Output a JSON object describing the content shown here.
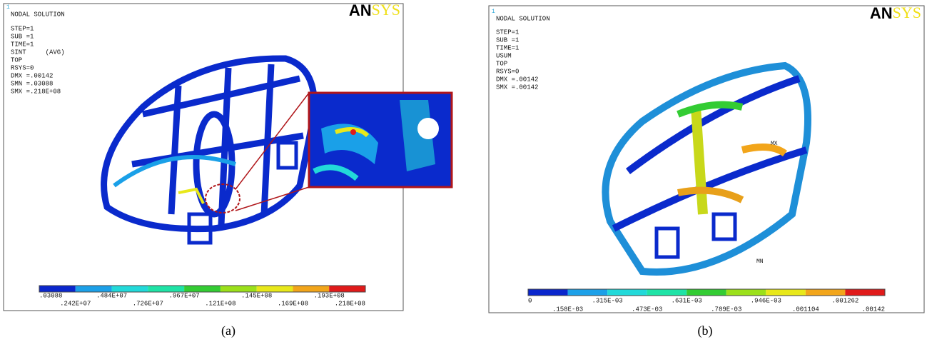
{
  "panels": [
    {
      "marker": "1",
      "logo": {
        "bold": "AN",
        "light": "SYS"
      },
      "header": [
        "NODAL SOLUTION",
        "STEP=1",
        "SUB =1",
        "TIME=1",
        "SINT     (AVG)",
        "TOP",
        "RSYS=0",
        "DMX =.00142",
        "SMN =.03088",
        "SMX =.218E+08"
      ],
      "legend": [
        ".03088",
        ".242E+07",
        ".484E+07",
        ".726E+07",
        ".967E+07",
        ".121E+08",
        ".145E+08",
        ".169E+08",
        ".193E+08",
        ".218E+08"
      ],
      "caption": "(a)"
    },
    {
      "marker": "1",
      "logo": {
        "bold": "AN",
        "light": "SYS"
      },
      "header": [
        "NODAL SOLUTION",
        "STEP=1",
        "SUB =1",
        "TIME=1",
        "USUM",
        "TOP",
        "RSYS=0",
        "DMX =.00142",
        "SMX =.00142"
      ],
      "legend": [
        "0",
        ".158E-03",
        ".315E-03",
        ".473E-03",
        ".631E-03",
        ".789E-03",
        ".946E-03",
        ".001104",
        ".001262",
        ".00142"
      ],
      "model_labels": [
        "MX",
        "MN"
      ],
      "caption": "(b)"
    }
  ]
}
